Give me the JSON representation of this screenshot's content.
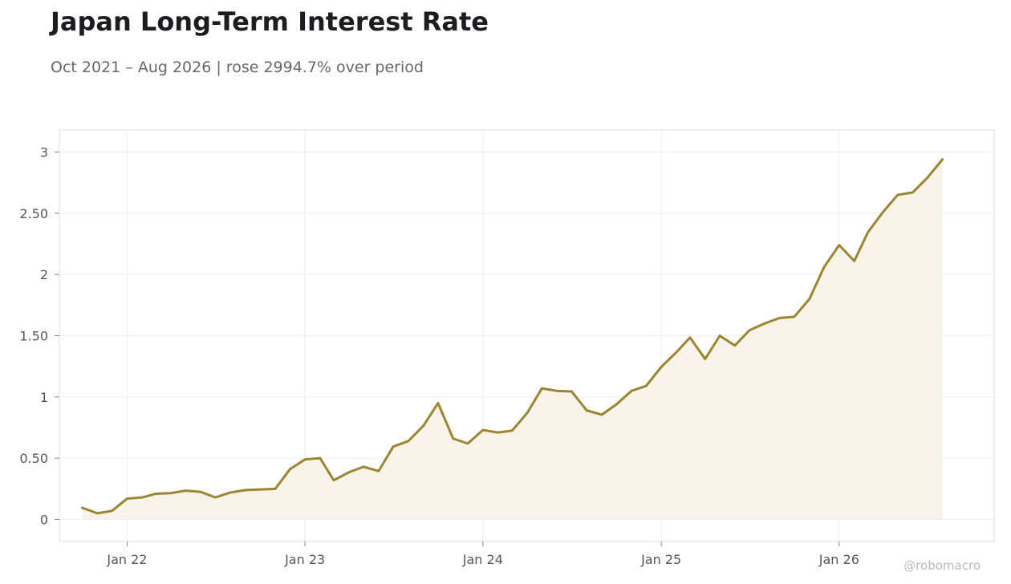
{
  "header": {
    "title": "Japan Long-Term Interest Rate",
    "subtitle": "Oct 2021 – Aug 2026 | rose 2994.7% over period"
  },
  "watermark": "@robomacro",
  "colors": {
    "line": "#9c8530",
    "fill": "#f7f3ea",
    "grid": "#eeeeee",
    "frame": "#dddddd"
  },
  "chart_data": {
    "type": "area",
    "title": "Japan Long-Term Interest Rate",
    "subtitle": "Oct 2021 – Aug 2026 | rose 2994.7% over period",
    "xlabel": "",
    "ylabel": "",
    "grid": true,
    "legend": "none",
    "ylim": [
      -0.18,
      3.18
    ],
    "xlim": [
      "2021-08-15",
      "2026-11-15"
    ],
    "y_ticks": [
      0,
      0.5,
      1,
      1.5,
      2,
      2.5,
      3
    ],
    "y_tick_labels": [
      "0",
      "0.50",
      "1",
      "1.50",
      "2",
      "2.50",
      "3"
    ],
    "x_ticks": [
      "2022-01-01",
      "2023-01-01",
      "2024-01-01",
      "2025-01-01",
      "2026-01-01"
    ],
    "x_tick_labels": [
      "Jan 22",
      "Jan 23",
      "Jan 24",
      "Jan 25",
      "Jan 26"
    ],
    "series": [
      {
        "x": [
          "2021-10-01",
          "2021-11-01",
          "2021-12-01",
          "2022-01-01",
          "2022-02-01",
          "2022-03-01",
          "2022-04-01",
          "2022-05-01",
          "2022-06-01",
          "2022-07-01",
          "2022-08-01",
          "2022-09-01",
          "2022-10-01",
          "2022-11-01",
          "2022-12-01",
          "2023-01-01",
          "2023-02-01",
          "2023-03-01",
          "2023-04-01",
          "2023-05-01",
          "2023-06-01",
          "2023-07-01",
          "2023-08-01",
          "2023-09-01",
          "2023-10-01",
          "2023-11-01",
          "2023-12-01",
          "2024-01-01",
          "2024-02-01",
          "2024-03-01",
          "2024-04-01",
          "2024-05-01",
          "2024-06-01",
          "2024-07-01",
          "2024-08-01",
          "2024-09-01",
          "2024-10-01",
          "2024-11-01",
          "2024-12-01",
          "2025-01-01",
          "2025-02-01",
          "2025-03-01",
          "2025-04-01",
          "2025-05-01",
          "2025-06-01",
          "2025-07-01",
          "2025-08-01",
          "2025-09-01",
          "2025-10-01",
          "2025-11-01",
          "2025-12-01",
          "2026-01-01",
          "2026-02-01",
          "2026-03-01",
          "2026-04-01",
          "2026-05-01",
          "2026-06-01",
          "2026-07-01",
          "2026-08-01"
        ],
        "values": [
          0.095,
          0.05,
          0.07,
          0.17,
          0.18,
          0.21,
          0.215,
          0.235,
          0.225,
          0.18,
          0.22,
          0.24,
          0.245,
          0.25,
          0.41,
          0.49,
          0.5,
          0.32,
          0.385,
          0.43,
          0.395,
          0.595,
          0.64,
          0.765,
          0.95,
          0.66,
          0.62,
          0.73,
          0.71,
          0.725,
          0.87,
          1.07,
          1.05,
          1.045,
          0.89,
          0.855,
          0.94,
          1.05,
          1.09,
          1.245,
          1.365,
          1.485,
          1.31,
          1.5,
          1.42,
          1.545,
          1.6,
          1.645,
          1.655,
          1.8,
          2.06,
          2.24,
          2.11,
          2.345,
          2.51,
          2.65,
          2.67,
          2.79,
          2.94
        ]
      }
    ]
  }
}
